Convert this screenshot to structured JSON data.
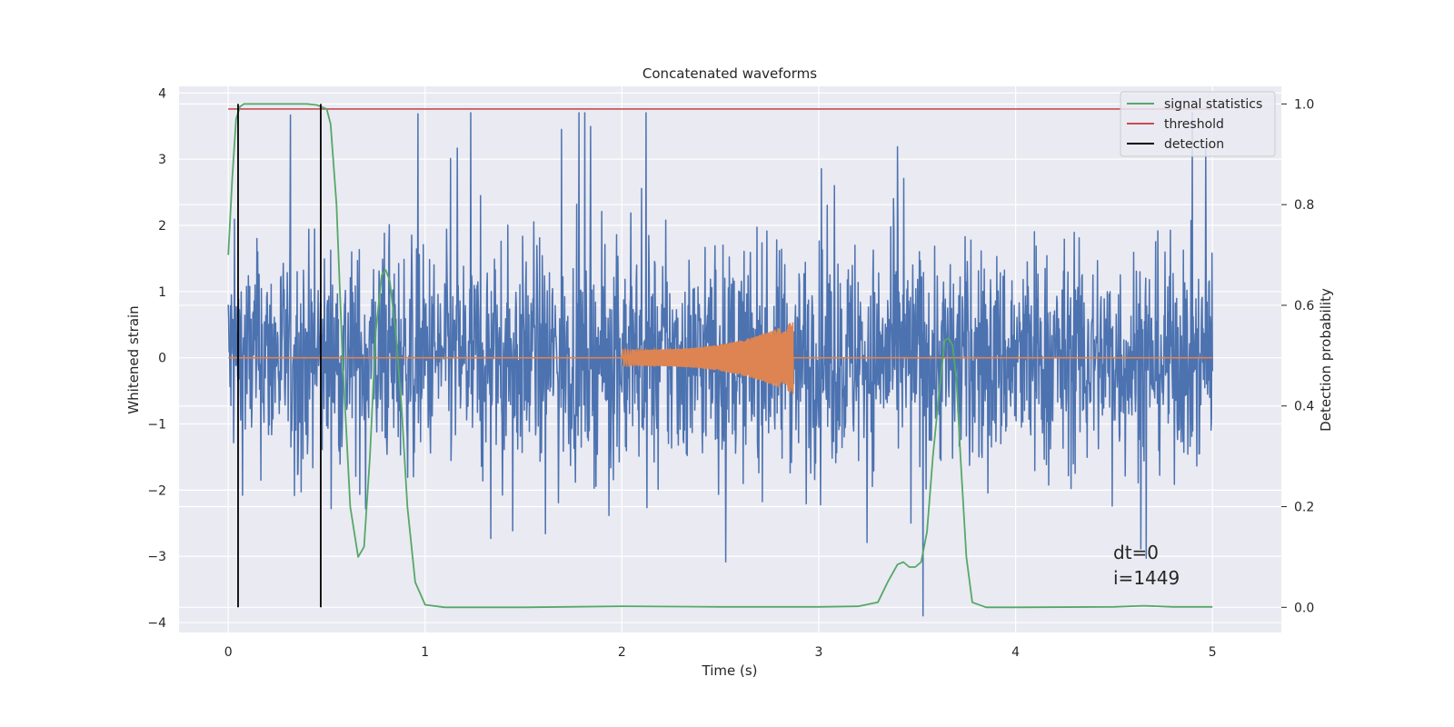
{
  "chart_data": {
    "type": "line",
    "title": "Concatenated waveforms",
    "xlabel": "Time (s)",
    "ylabel": "Whitened strain",
    "y2label": "Detection probability",
    "xlim": [
      -0.25,
      5.35
    ],
    "ylim": [
      -4.15,
      4.1
    ],
    "y2lim": [
      -0.05,
      1.035
    ],
    "xticks": [
      0,
      1,
      2,
      3,
      4,
      5
    ],
    "yticks": [
      -4,
      -3,
      -2,
      -1,
      0,
      1,
      2,
      3,
      4
    ],
    "y2ticks": [
      0.0,
      0.2,
      0.4,
      0.6,
      0.8,
      1.0
    ],
    "xtick_labels": [
      "0",
      "1",
      "2",
      "3",
      "4",
      "5"
    ],
    "ytick_labels": [
      "−4",
      "−3",
      "−2",
      "−1",
      "0",
      "1",
      "2",
      "3",
      "4"
    ],
    "y2tick_labels": [
      "0.0",
      "0.2",
      "0.4",
      "0.6",
      "0.8",
      "1.0"
    ],
    "grid": true,
    "legend_position": "top-right",
    "legend": [
      {
        "label": "signal statistics",
        "color": "#55a868"
      },
      {
        "label": "threshold",
        "color": "#c44e52"
      },
      {
        "label": "detection",
        "color": "#000000"
      }
    ],
    "series": [
      {
        "name": "",
        "axis": "left",
        "color": "#4c72b0",
        "kind": "noise",
        "x_range": [
          0,
          5
        ],
        "y_band": [
          -1.3,
          1.3
        ],
        "peak_range": [
          -3.9,
          3.7
        ]
      },
      {
        "name": "",
        "axis": "left",
        "color": "#dd8452",
        "kind": "chirp",
        "x_range": [
          0,
          5
        ],
        "chirp_x": [
          2.0,
          2.87
        ],
        "chirp_amplitude_start": 0.12,
        "chirp_amplitude_end": 0.55
      },
      {
        "name": "signal statistics",
        "axis": "right",
        "color": "#55a868",
        "x": [
          0,
          0.02,
          0.04,
          0.06,
          0.08,
          0.1,
          0.15,
          0.2,
          0.3,
          0.4,
          0.45,
          0.5,
          0.52,
          0.55,
          0.58,
          0.62,
          0.66,
          0.69,
          0.72,
          0.75,
          0.78,
          0.8,
          0.82,
          0.85,
          0.88,
          0.91,
          0.95,
          1.0,
          1.1,
          1.5,
          2.0,
          2.5,
          3.0,
          3.2,
          3.3,
          3.35,
          3.4,
          3.43,
          3.46,
          3.49,
          3.52,
          3.55,
          3.58,
          3.61,
          3.64,
          3.66,
          3.68,
          3.7,
          3.72,
          3.75,
          3.78,
          3.85,
          4.0,
          4.5,
          4.65,
          4.8,
          5.0
        ],
        "y": [
          0.7,
          0.85,
          0.97,
          0.995,
          1.0,
          1.0,
          1.0,
          1.0,
          1.0,
          1.0,
          0.998,
          0.99,
          0.96,
          0.8,
          0.5,
          0.2,
          0.1,
          0.12,
          0.3,
          0.55,
          0.66,
          0.67,
          0.65,
          0.55,
          0.4,
          0.2,
          0.05,
          0.005,
          0.0,
          0.0,
          0.002,
          0.001,
          0.001,
          0.002,
          0.01,
          0.05,
          0.085,
          0.09,
          0.08,
          0.08,
          0.09,
          0.15,
          0.3,
          0.42,
          0.53,
          0.535,
          0.52,
          0.45,
          0.3,
          0.1,
          0.01,
          0.0,
          0.0,
          0.001,
          0.003,
          0.001,
          0.001
        ]
      },
      {
        "name": "threshold",
        "axis": "right",
        "color": "#c44e52",
        "x": [
          0,
          5
        ],
        "y": [
          0.99,
          0.99
        ]
      }
    ],
    "detections": {
      "name": "detection",
      "color": "#000000",
      "x": [
        0.05,
        0.47
      ],
      "y": [
        0.0,
        1.0
      ]
    },
    "annotations": [
      "dt=0",
      "i=1449"
    ],
    "annotation_position": [
      4.5,
      -3.0
    ],
    "colors": {
      "axes_background": "#eaeaf2",
      "grid": "#ffffff",
      "figure_background": "#ffffff"
    }
  }
}
